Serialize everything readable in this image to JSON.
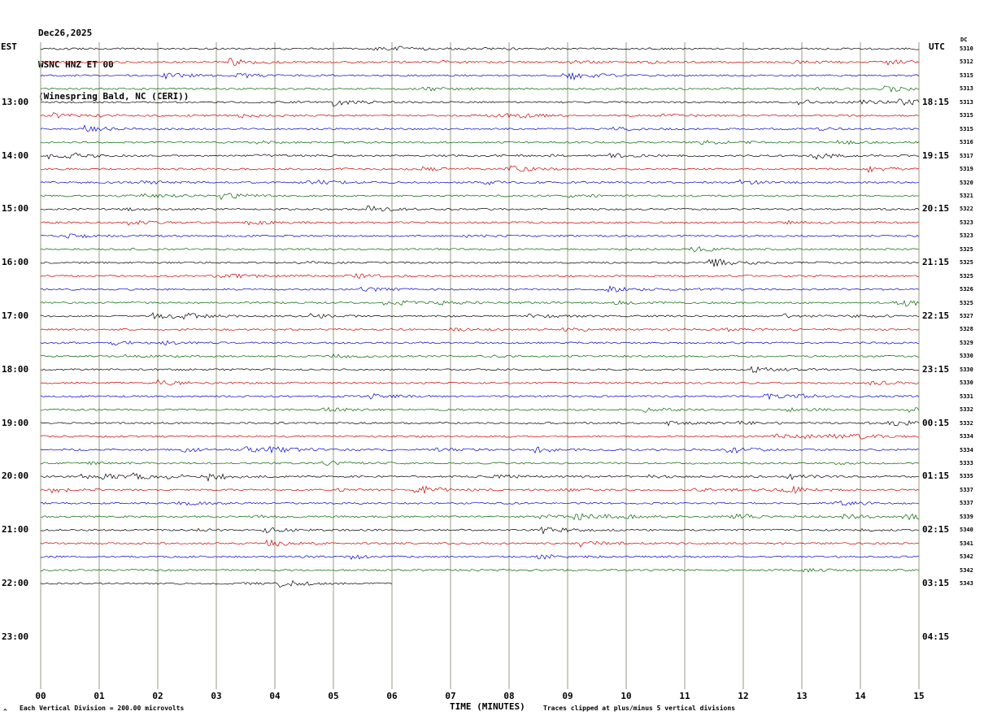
{
  "header": {
    "date": "Dec26,2025",
    "station": "WSNC HNZ ET 00",
    "location": "(Winespring Bald, NC (CERI))"
  },
  "axes": {
    "left_label": "EST",
    "right_label": "UTC",
    "dc_label": "DC",
    "x_label": "TIME (MINUTES)",
    "x_ticks": [
      "00",
      "01",
      "02",
      "03",
      "04",
      "05",
      "06",
      "07",
      "08",
      "09",
      "10",
      "11",
      "12",
      "13",
      "14",
      "15"
    ]
  },
  "left_times": [
    "13:00",
    "14:00",
    "15:00",
    "16:00",
    "17:00",
    "18:00",
    "19:00",
    "20:00",
    "21:00",
    "22:00",
    "23:00"
  ],
  "right_times": [
    "18:15",
    "19:15",
    "20:15",
    "21:15",
    "22:15",
    "23:15",
    "00:15",
    "01:15",
    "02:15",
    "03:15",
    "04:15"
  ],
  "dc_values": [
    5310,
    5312,
    5315,
    5313,
    5313,
    5315,
    5315,
    5316,
    5317,
    5319,
    5320,
    5321,
    5322,
    5323,
    5323,
    5325,
    5325,
    5325,
    5326,
    5325,
    5327,
    5328,
    5329,
    5330,
    5330,
    5330,
    5331,
    5332,
    5332,
    5334,
    5334,
    5333,
    5335,
    5337,
    5337,
    5339,
    5340,
    5341,
    5342,
    5342,
    5343
  ],
  "footer": {
    "left": "Each Vertical Division =  200.00 microvolts",
    "right": "Traces clipped at plus/minus 5 vertical divisions",
    "corner_mark": "^"
  },
  "chart_data": {
    "type": "line",
    "title": "WSNC HNZ ET 00 helicorder - Dec26,2025 - Winespring Bald, NC (CERI)",
    "xlabel": "TIME (MINUTES)",
    "x_range_minutes": [
      0,
      15
    ],
    "row_interval_minutes": 15,
    "rows_per_hour": 4,
    "trace_row_count": 41,
    "last_row_end_minute": 6,
    "trace_colors_cycle": [
      "#000000",
      "#cc0000",
      "#0000cc",
      "#006600"
    ],
    "grid_color": "#9a9a80",
    "grid": true,
    "est_hour_labels": [
      "13:00",
      "14:00",
      "15:00",
      "16:00",
      "17:00",
      "18:00",
      "19:00",
      "20:00",
      "21:00",
      "22:00",
      "23:00"
    ],
    "utc_hour_labels": [
      "18:15",
      "19:15",
      "20:15",
      "21:15",
      "22:15",
      "23:15",
      "00:15",
      "01:15",
      "02:15",
      "03:15",
      "04:15"
    ],
    "dc_offsets": [
      5310,
      5312,
      5315,
      5313,
      5313,
      5315,
      5315,
      5316,
      5317,
      5319,
      5320,
      5321,
      5322,
      5323,
      5323,
      5325,
      5325,
      5325,
      5326,
      5325,
      5327,
      5328,
      5329,
      5330,
      5330,
      5330,
      5331,
      5332,
      5332,
      5334,
      5334,
      5333,
      5335,
      5337,
      5337,
      5339,
      5340,
      5341,
      5342,
      5342,
      5343
    ],
    "vertical_division_microvolts": 200.0,
    "clip_divisions": 5,
    "description": "Continuous seismic background-noise traces, one 15-minute row per line cycling black/red/blue/green, amplitudes about one vertical division with sporadic short bursts; final partial row ends near minute 06; no discrete readable data points."
  }
}
